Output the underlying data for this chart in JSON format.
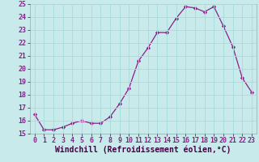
{
  "x": [
    0,
    1,
    2,
    3,
    4,
    5,
    6,
    7,
    8,
    9,
    10,
    11,
    12,
    13,
    14,
    15,
    16,
    17,
    18,
    19,
    20,
    21,
    22,
    23
  ],
  "y": [
    16.5,
    15.3,
    15.3,
    15.5,
    15.8,
    16.0,
    15.8,
    15.8,
    16.3,
    17.3,
    18.5,
    20.6,
    21.6,
    22.8,
    22.8,
    23.9,
    24.8,
    24.7,
    24.4,
    24.8,
    23.3,
    21.7,
    19.3,
    18.2
  ],
  "xlabel": "Windchill (Refroidissement éolien,°C)",
  "line_color": "#882288",
  "marker_color": "#882288",
  "bg_color": "#c8eaea",
  "grid_color": "#aadddd",
  "ylim": [
    15,
    25
  ],
  "xlim": [
    -0.5,
    23.5
  ],
  "yticks": [
    15,
    16,
    17,
    18,
    19,
    20,
    21,
    22,
    23,
    24,
    25
  ],
  "ytick_labels": [
    "15",
    "16",
    "17",
    "18",
    "19",
    "20",
    "21",
    "22",
    "23",
    "24",
    "25"
  ],
  "xticks": [
    0,
    1,
    2,
    3,
    4,
    5,
    6,
    7,
    8,
    9,
    10,
    11,
    12,
    13,
    14,
    15,
    16,
    17,
    18,
    19,
    20,
    21,
    22,
    23
  ],
  "xtick_labels": [
    "0",
    "1",
    "2",
    "3",
    "4",
    "5",
    "6",
    "7",
    "8",
    "9",
    "10",
    "11",
    "12",
    "13",
    "14",
    "15",
    "16",
    "17",
    "18",
    "19",
    "20",
    "21",
    "22",
    "23"
  ],
  "tick_fontsize": 6,
  "xlabel_fontsize": 7
}
